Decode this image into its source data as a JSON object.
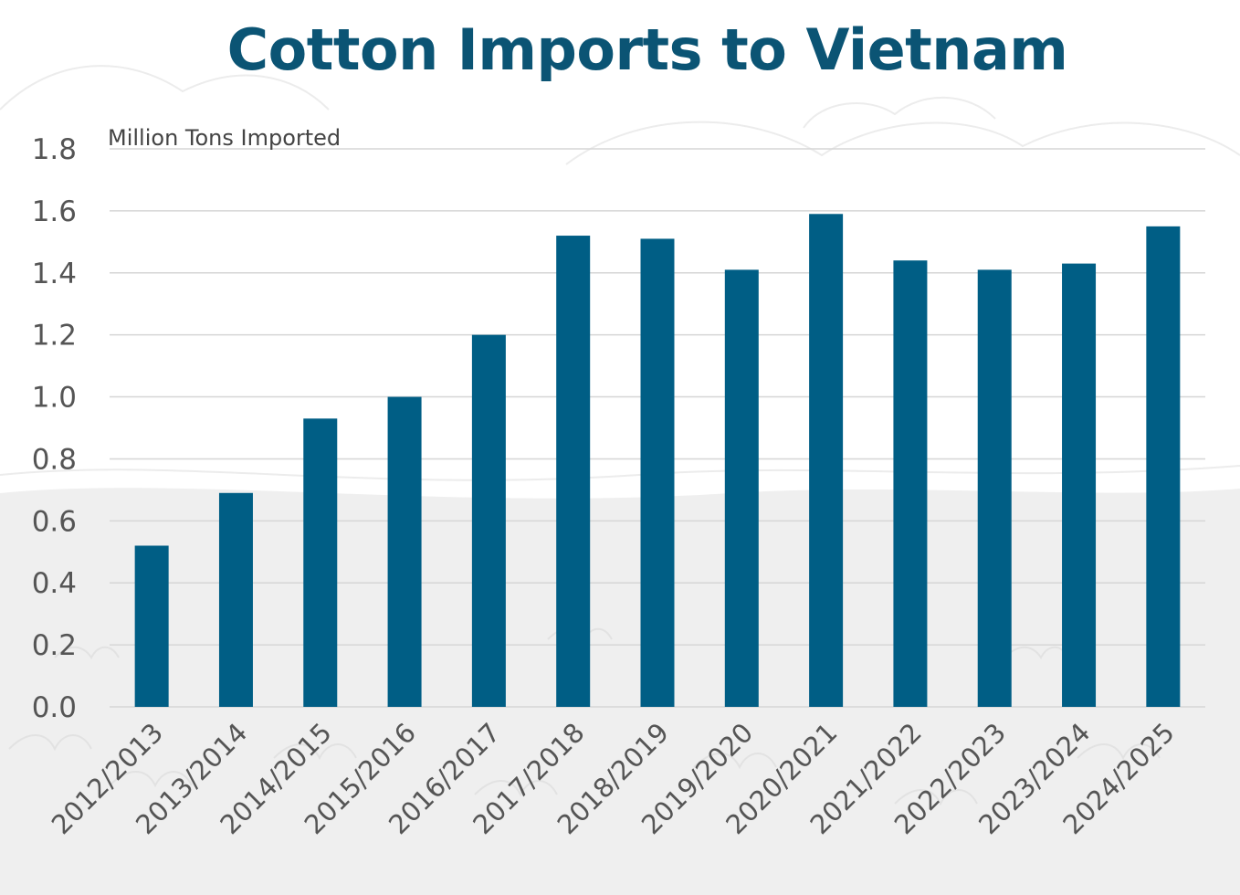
{
  "chart_data": {
    "type": "bar",
    "title": "Cotton Imports to Vietnam",
    "ylabel": "Million Tons Imported",
    "xlabel": "",
    "ylim": [
      0,
      1.8
    ],
    "yticks": [
      "0.0",
      "0.2",
      "0.4",
      "0.6",
      "0.8",
      "1.0",
      "1.2",
      "1.4",
      "1.6",
      "1.8"
    ],
    "grid": true,
    "bar_color": "#005e85",
    "categories": [
      "2012/2013",
      "2013/2014",
      "2014/2015",
      "2015/2016",
      "2016/2017",
      "2017/2018",
      "2018/2019",
      "2019/2020",
      "2020/2021",
      "2021/2022",
      "2022/2023",
      "2023/2024",
      "2024/2025"
    ],
    "values": [
      0.52,
      0.69,
      0.93,
      1.0,
      1.2,
      1.52,
      1.51,
      1.41,
      1.59,
      1.44,
      1.41,
      1.43,
      1.55
    ]
  }
}
